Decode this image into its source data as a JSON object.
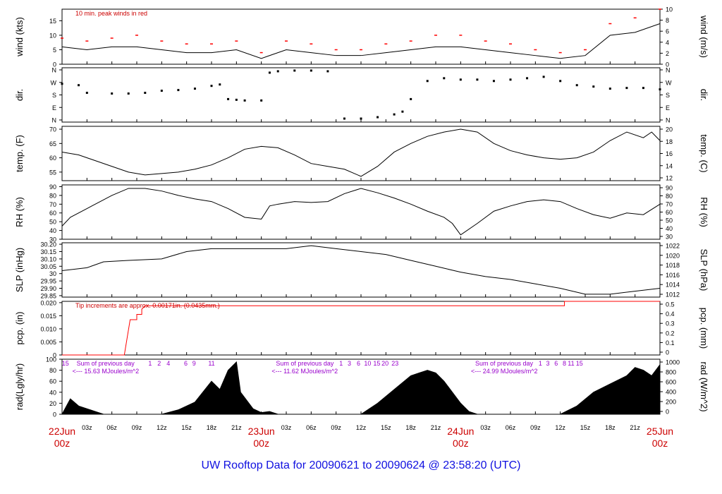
{
  "footer": {
    "title": "UW Rooftop Data for 20090621  to  20090624 @ 23:58:20  (UTC)"
  },
  "chart_data": {
    "type": "line",
    "time_axis": {
      "range_hours": [
        0,
        72
      ],
      "minor_tick_labels": [
        "03z",
        "06z",
        "09z",
        "12z",
        "15z",
        "18z",
        "21z",
        "03z",
        "06z",
        "09z",
        "12z",
        "15z",
        "18z",
        "21z",
        "03z",
        "06z",
        "09z",
        "12z",
        "15z",
        "18z",
        "21z"
      ],
      "minor_tick_hours": [
        3,
        6,
        9,
        12,
        15,
        18,
        21,
        27,
        30,
        33,
        36,
        39,
        42,
        45,
        51,
        54,
        57,
        60,
        63,
        66,
        69
      ],
      "day_labels": [
        {
          "hour": 0,
          "date": "22Jun",
          "time": "00z"
        },
        {
          "hour": 24,
          "date": "23Jun",
          "time": "00z"
        },
        {
          "hour": 48,
          "date": "24Jun",
          "time": "00z"
        },
        {
          "hour": 72,
          "date": "25Jun",
          "time": "00z"
        }
      ]
    },
    "panels": [
      {
        "id": "wind",
        "left_label": "wind (kts)",
        "right_label": "wind (m/s)",
        "left_range": [
          0,
          19
        ],
        "left_ticks": [
          0,
          5,
          10,
          15
        ],
        "right_ticks": [
          0,
          2,
          4,
          6,
          8,
          10
        ],
        "right_range": [
          0,
          10
        ],
        "annotation": "10 min. peak winds in red",
        "series": [
          {
            "name": "wind speed",
            "color": "#000000",
            "x": [
              0,
              3,
              6,
              9,
              12,
              15,
              18,
              21,
              24,
              27,
              30,
              33,
              36,
              39,
              42,
              45,
              48,
              51,
              54,
              57,
              60,
              63,
              66,
              69,
              72
            ],
            "y": [
              6,
              5,
              6,
              6,
              5,
              4,
              4,
              5,
              2,
              5,
              4,
              3,
              3,
              4,
              5,
              6,
              6,
              5,
              4,
              3,
              2,
              3,
              10,
              11,
              14
            ]
          },
          {
            "name": "10 min. peak winds",
            "color": "#ff0000",
            "x": [
              0,
              3,
              6,
              9,
              12,
              15,
              18,
              21,
              24,
              27,
              30,
              33,
              36,
              39,
              42,
              45,
              48,
              51,
              54,
              57,
              60,
              63,
              66,
              69,
              72
            ],
            "y": [
              9,
              8,
              9,
              10,
              8,
              7,
              7,
              8,
              4,
              8,
              7,
              5,
              5,
              7,
              8,
              10,
              10,
              8,
              7,
              5,
              4,
              5,
              14,
              16,
              19
            ]
          }
        ]
      },
      {
        "id": "dir",
        "left_label": "dir.",
        "right_label": "dir.",
        "tick_labels": [
          "N",
          "E",
          "S",
          "W",
          "N"
        ],
        "range_deg": [
          0,
          360
        ],
        "series": [
          {
            "name": "direction",
            "color": "#000000",
            "x": [
              0,
              2,
              3,
              6,
              8,
              10,
              12,
              14,
              16,
              18,
              19,
              20,
              21,
              22,
              24,
              25,
              26,
              28,
              30,
              32,
              34,
              36,
              38,
              40,
              41,
              42,
              44,
              46,
              48,
              50,
              52,
              54,
              56,
              58,
              60,
              62,
              64,
              66,
              68,
              70,
              72
            ],
            "y": [
              260,
              250,
              195,
              190,
              190,
              195,
              210,
              215,
              225,
              245,
              255,
              150,
              145,
              140,
              140,
              340,
              350,
              355,
              355,
              350,
              10,
              10,
              20,
              40,
              60,
              150,
              280,
              300,
              290,
              290,
              280,
              290,
              300,
              310,
              280,
              250,
              240,
              225,
              230,
              230,
              220
            ]
          }
        ]
      },
      {
        "id": "temp",
        "left_label": "temp. (F)",
        "right_label": "temp. (C)",
        "left_range": [
          52,
          71
        ],
        "left_ticks": [
          55,
          60,
          65,
          70
        ],
        "right_ticks": [
          12,
          14,
          16,
          18,
          20
        ],
        "series": [
          {
            "name": "temperature",
            "color": "#000000",
            "x": [
              0,
              2,
              4,
              6,
              8,
              10,
              12,
              14,
              16,
              18,
              20,
              22,
              24,
              26,
              28,
              30,
              32,
              34,
              36,
              38,
              40,
              42,
              44,
              46,
              48,
              50,
              52,
              54,
              56,
              58,
              60,
              62,
              64,
              66,
              68,
              70,
              71,
              72
            ],
            "y": [
              62,
              61,
              59,
              57,
              55,
              54,
              54.5,
              55,
              56,
              57.5,
              60,
              63,
              64,
              63.5,
              61,
              58,
              57,
              56,
              53.5,
              57,
              62,
              65,
              67.5,
              69,
              70,
              69,
              65,
              62.5,
              61,
              60,
              59.5,
              60,
              62,
              66,
              69,
              67,
              69,
              66
            ]
          }
        ]
      },
      {
        "id": "rh",
        "left_label": "RH (%)",
        "right_label": "RH (%)",
        "left_range": [
          30,
          92
        ],
        "left_ticks": [
          30,
          40,
          50,
          60,
          70,
          80,
          90
        ],
        "right_ticks": [
          30,
          40,
          50,
          60,
          70,
          80,
          90
        ],
        "series": [
          {
            "name": "relative humidity",
            "color": "#000000",
            "x": [
              0,
              1,
              3,
              6,
              8,
              10,
              12,
              14,
              16,
              18,
              20,
              22,
              24,
              25,
              26,
              28,
              30,
              32,
              34,
              36,
              38,
              40,
              42,
              44,
              46,
              47,
              48,
              50,
              52,
              54,
              56,
              58,
              60,
              62,
              64,
              66,
              68,
              70,
              72
            ],
            "y": [
              45,
              55,
              65,
              80,
              88,
              88,
              85,
              80,
              76,
              73,
              65,
              55,
              53,
              68,
              70,
              73,
              72,
              73,
              82,
              88,
              83,
              77,
              70,
              62,
              55,
              48,
              35,
              48,
              62,
              68,
              73,
              75,
              73,
              65,
              58,
              54,
              60,
              58,
              70
            ]
          }
        ]
      },
      {
        "id": "slp",
        "left_label": "SLP (inHg)",
        "right_label": "SLP (hPa)",
        "left_range": [
          29.84,
          30.21
        ],
        "left_ticks": [
          29.85,
          29.9,
          29.95,
          30.0,
          30.05,
          30.1,
          30.15,
          30.2
        ],
        "right_ticks": [
          1012,
          1014,
          1016,
          1018,
          1020,
          1022
        ],
        "series": [
          {
            "name": "sea level pressure",
            "color": "#000000",
            "x": [
              0,
              3,
              5,
              8,
              12,
              15,
              18,
              21,
              24,
              27,
              30,
              33,
              36,
              39,
              42,
              45,
              48,
              51,
              54,
              57,
              60,
              63,
              66,
              69,
              72
            ],
            "y": [
              30.02,
              30.04,
              30.08,
              30.09,
              30.1,
              30.15,
              30.17,
              30.17,
              30.17,
              30.17,
              30.19,
              30.17,
              30.15,
              30.13,
              30.09,
              30.05,
              30.01,
              29.98,
              29.96,
              29.93,
              29.9,
              29.86,
              29.86,
              29.88,
              29.9
            ]
          }
        ]
      },
      {
        "id": "pcp",
        "left_label": "pcp. (in)",
        "right_label": "pcp. (mm)",
        "left_range": [
          0,
          0.0205
        ],
        "left_ticks": [
          0.0,
          0.005,
          0.01,
          0.015,
          0.02
        ],
        "right_ticks": [
          0,
          0.1,
          0.2,
          0.3,
          0.4,
          0.5
        ],
        "annotation": "Tip increments are approx. 0.00171in. (0.0435mm.)",
        "series": [
          {
            "name": "precipitation",
            "color": "#ff0000",
            "x": [
              0,
              7.5,
              8.2,
              8.2,
              9,
              9,
              9.6,
              9.6,
              10,
              10.5,
              10.5,
              60.5,
              60.5,
              72
            ],
            "y": [
              0,
              0,
              0.0135,
              0.0135,
              0.0135,
              0.0155,
              0.0155,
              0.0175,
              0.0188,
              0.0188,
              0.0188,
              0.0188,
              0.0205,
              0.0205
            ]
          }
        ]
      },
      {
        "id": "rad",
        "left_label": "rad(Lgly/hr)",
        "right_label": "rad (W/m^2)",
        "left_range": [
          0,
          100
        ],
        "left_ticks": [
          0,
          20,
          40,
          60,
          80,
          100
        ],
        "right_ticks": [
          0,
          200,
          400,
          600,
          800,
          1000
        ],
        "daily_sums": [
          {
            "hour": 1.5,
            "label": "Sum of previous day"
          },
          {
            "hour": 25.5,
            "label": "Sum of previous day"
          },
          {
            "hour": 49.5,
            "label": "Sum of previous day"
          }
        ],
        "daily_sum_values": [
          {
            "hour": 1.5,
            "label": "<--- 15.63 MJoules/m^2"
          },
          {
            "hour": 25.5,
            "label": "<--- 11.62 MJoules/m^2"
          },
          {
            "hour": 49.5,
            "label": "<--- 24.99 MJoules/m^2"
          }
        ],
        "hour_labels": [
          {
            "hour": 0.4,
            "label": "15"
          },
          {
            "hour": 10.6,
            "label": "1"
          },
          {
            "hour": 11.7,
            "label": "2"
          },
          {
            "hour": 12.8,
            "label": "4"
          },
          {
            "hour": 14.9,
            "label": "6"
          },
          {
            "hour": 15.9,
            "label": "9"
          },
          {
            "hour": 18,
            "label": "11"
          },
          {
            "hour": 33.6,
            "label": "1"
          },
          {
            "hour": 34.6,
            "label": "3"
          },
          {
            "hour": 35.7,
            "label": "6"
          },
          {
            "hour": 36.8,
            "label": "10"
          },
          {
            "hour": 37.9,
            "label": "15"
          },
          {
            "hour": 38.9,
            "label": "20"
          },
          {
            "hour": 40.1,
            "label": "23"
          },
          {
            "hour": 57.6,
            "label": "1"
          },
          {
            "hour": 58.5,
            "label": "3"
          },
          {
            "hour": 59.5,
            "label": "6"
          },
          {
            "hour": 60.5,
            "label": "8"
          },
          {
            "hour": 61.3,
            "label": "11"
          },
          {
            "hour": 62.3,
            "label": "15"
          }
        ],
        "series": [
          {
            "name": "solar radiation",
            "color": "#000000",
            "x": [
              0,
              1,
              2,
              3,
              4,
              5,
              12,
              14,
              16,
              18,
              19,
              20,
              21,
              21.5,
              22,
              23,
              24,
              25,
              26,
              36,
              38,
              40,
              42,
              43,
              44,
              45,
              46,
              47,
              48,
              49,
              50,
              60,
              62,
              64,
              66,
              68,
              69,
              70,
              71,
              72
            ],
            "y": [
              0,
              28,
              15,
              10,
              5,
              0,
              0,
              8,
              22,
              60,
              45,
              80,
              95,
              40,
              30,
              10,
              3,
              5,
              0,
              0,
              20,
              45,
              70,
              75,
              80,
              75,
              60,
              40,
              20,
              5,
              0,
              0,
              15,
              40,
              55,
              70,
              85,
              80,
              70,
              90
            ]
          }
        ]
      }
    ]
  }
}
